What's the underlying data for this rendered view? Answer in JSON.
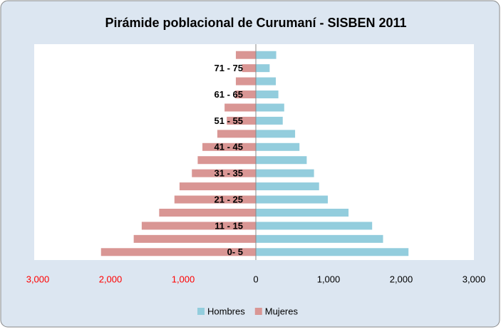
{
  "chart_data": {
    "type": "pyramid",
    "title": "Pirámide poblacional de Curumaní - SISBEN 2011",
    "categories": [
      "0- 5",
      null,
      "11 - 15",
      null,
      "21 - 25",
      null,
      "31 - 35",
      null,
      "41 - 45",
      null,
      "51 - 55",
      null,
      "61 - 65",
      null,
      "71 - 75",
      null
    ],
    "series": [
      {
        "name": "Hombres",
        "color": "#93cddd",
        "values": [
          2100,
          1750,
          1600,
          1275,
          990,
          870,
          800,
          700,
          600,
          540,
          370,
          390,
          310,
          275,
          190,
          280
        ]
      },
      {
        "name": "Mujeres",
        "color": "#d99694",
        "values": [
          -2130,
          -1680,
          -1570,
          -1330,
          -1120,
          -1050,
          -880,
          -800,
          -735,
          -530,
          -400,
          -430,
          -285,
          -275,
          -190,
          -275
        ]
      }
    ],
    "xlim": [
      -3000,
      3000
    ],
    "xticks": [
      {
        "value": -3000,
        "label": "3,000"
      },
      {
        "value": -2000,
        "label": "2,000"
      },
      {
        "value": -1000,
        "label": "1,000"
      },
      0,
      {
        "value": 1000,
        "label": "1,000"
      },
      {
        "value": 2000,
        "label": "2,000"
      },
      {
        "value": 3000,
        "label": "3,000"
      }
    ],
    "negative_tick_color": "#ff0000",
    "legend": "bottom"
  }
}
